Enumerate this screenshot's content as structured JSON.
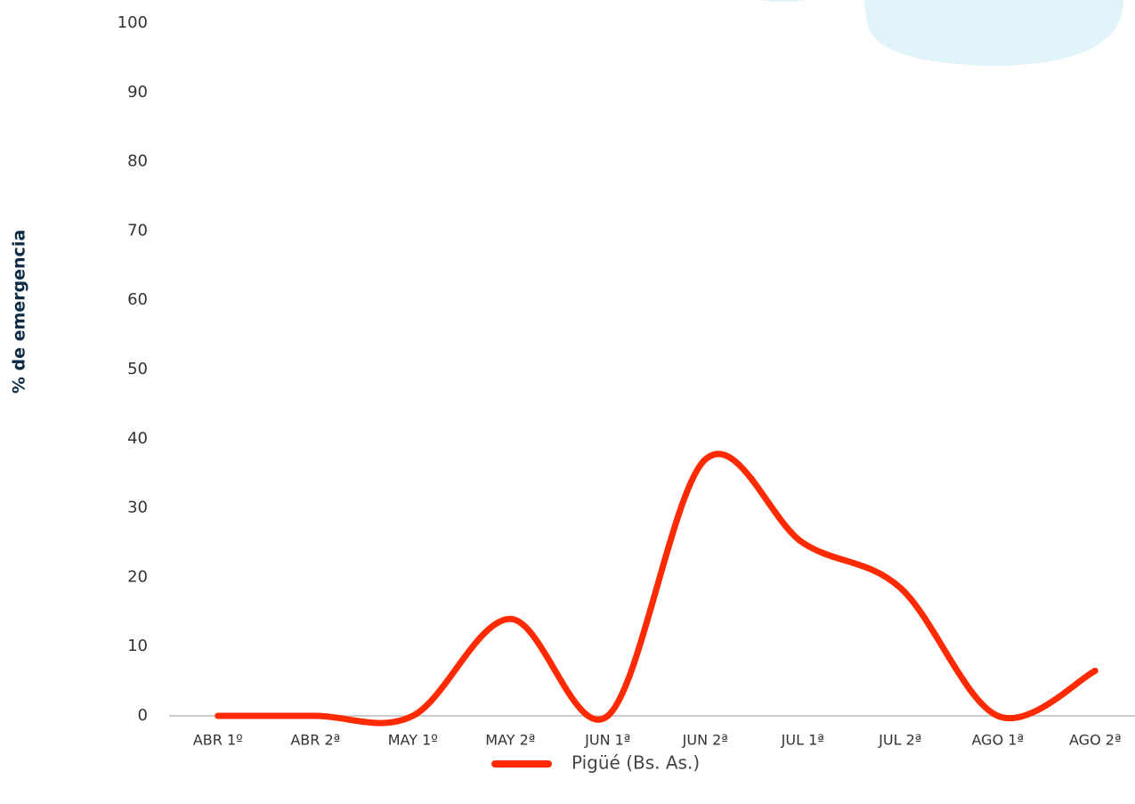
{
  "chart_data": {
    "type": "line",
    "y_label": "% de emergencia",
    "categories": [
      "ABR 1º",
      "ABR  2ª",
      "MAY 1º",
      "MAY 2ª",
      "JUN 1ª",
      "JUN 2ª",
      "JUL 1ª",
      "JUL 2ª",
      "AGO 1ª",
      "AGO 2ª"
    ],
    "series": [
      {
        "name": "Pigüé (Bs. As.)",
        "color": "#ff2a00",
        "values": [
          0,
          0,
          0,
          14,
          0,
          37,
          25,
          18.5,
          0,
          6.5
        ]
      }
    ],
    "ylim": [
      0,
      100
    ],
    "yticks": [
      0,
      10,
      20,
      30,
      40,
      50,
      60,
      70,
      80,
      90,
      100
    ],
    "grid": false,
    "legend": "bottom",
    "smooth": true
  }
}
